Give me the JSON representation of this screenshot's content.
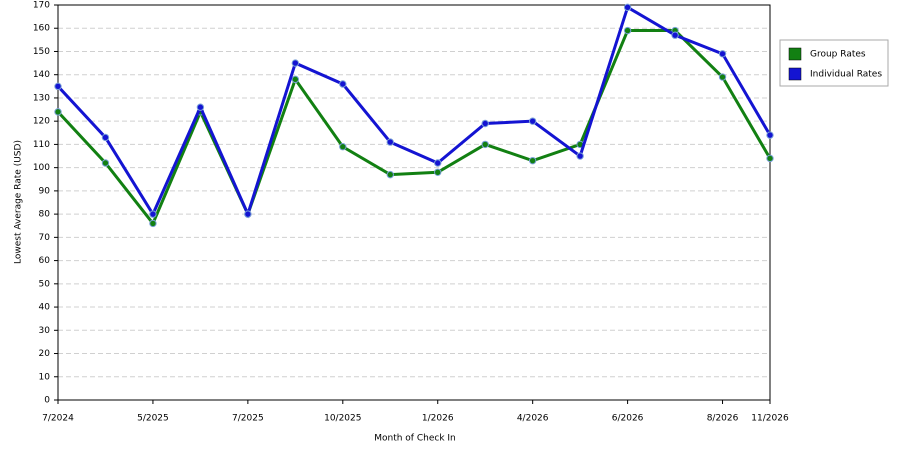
{
  "chart_data": {
    "type": "line",
    "x_label": "Month of Check In",
    "y_label": "Lowest Average Rate (USD)",
    "categories": [
      "7/2024",
      null,
      "5/2025",
      null,
      "7/2025",
      null,
      "10/2025",
      null,
      "1/2026",
      null,
      "4/2026",
      null,
      "6/2026",
      null,
      "8/2026",
      "11/2026"
    ],
    "series": [
      {
        "name": "Group Rates",
        "color": "#128012",
        "values": [
          124,
          102,
          76,
          124,
          80,
          138,
          109,
          97,
          98,
          110,
          103,
          110,
          159,
          159,
          139,
          104
        ]
      },
      {
        "name": "Individual Rates",
        "color": "#1414d2",
        "values": [
          135,
          113,
          80,
          126,
          80,
          145,
          136,
          111,
          102,
          119,
          120,
          105,
          169,
          157,
          149,
          114
        ]
      }
    ],
    "ylim": [
      0,
      170
    ],
    "yticks": [
      0,
      10,
      20,
      30,
      40,
      50,
      60,
      70,
      80,
      90,
      100,
      110,
      120,
      130,
      140,
      150,
      160,
      170
    ],
    "grid": true,
    "legend": "right"
  }
}
